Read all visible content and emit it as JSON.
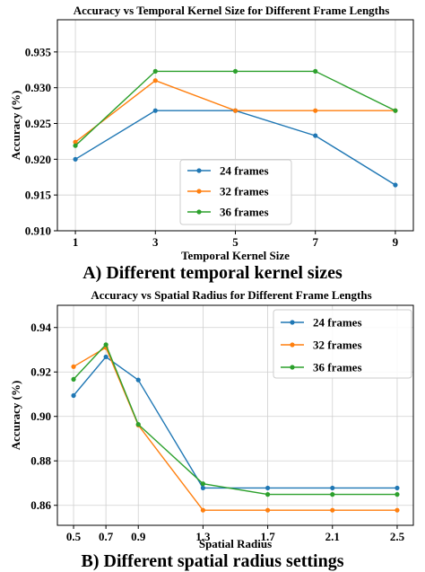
{
  "chart_data": [
    {
      "type": "line",
      "title": "Accuracy vs Temporal Kernel Size for Different Frame Lengths",
      "caption": "A) Different temporal kernel sizes",
      "xlabel": "Temporal Kernel Size",
      "ylabel": "Accuracy (%)",
      "x": [
        1,
        3,
        5,
        7,
        9
      ],
      "x_tick_labels": [
        "1",
        "3",
        "5",
        "7",
        "9"
      ],
      "xlim": [
        0.55,
        9.45
      ],
      "ylim": [
        0.91,
        0.9395
      ],
      "y_ticks": [
        0.91,
        0.915,
        0.92,
        0.925,
        0.93,
        0.935
      ],
      "y_tick_labels": [
        "0.910",
        "0.915",
        "0.920",
        "0.925",
        "0.930",
        "0.935"
      ],
      "grid": true,
      "legend_position": "lower-center",
      "series": [
        {
          "name": "24 frames",
          "color": "#1f77b4",
          "values": [
            0.92,
            0.9268,
            0.9268,
            0.9233,
            0.9164
          ]
        },
        {
          "name": "32 frames",
          "color": "#ff7f0e",
          "values": [
            0.9224,
            0.931,
            0.9268,
            0.9268,
            0.9268
          ]
        },
        {
          "name": "36 frames",
          "color": "#2ca02c",
          "values": [
            0.9219,
            0.9323,
            0.9323,
            0.9323,
            0.9268
          ]
        }
      ]
    },
    {
      "type": "line",
      "title": "Accuracy vs Spatial Radius for Different Frame Lengths",
      "caption": "B) Different spatial radius settings",
      "xlabel": "Spatial Radius",
      "ylabel": "Accuracy (%)",
      "x": [
        0.5,
        0.7,
        0.9,
        1.3,
        1.7,
        2.1,
        2.5
      ],
      "x_tick_labels": [
        "0.5",
        "0.7",
        "0.9",
        "1.3",
        "1.7",
        "2.1",
        "2.5"
      ],
      "xlim": [
        0.4,
        2.6
      ],
      "ylim": [
        0.851,
        0.95
      ],
      "y_ticks": [
        0.86,
        0.88,
        0.9,
        0.92,
        0.94
      ],
      "y_tick_labels": [
        "0.86",
        "0.88",
        "0.90",
        "0.92",
        "0.94"
      ],
      "grid": true,
      "legend_position": "upper-right",
      "series": [
        {
          "name": "24 frames",
          "color": "#1f77b4",
          "values": [
            0.9094,
            0.9268,
            0.9164,
            0.8678,
            0.8678,
            0.8678,
            0.8678
          ]
        },
        {
          "name": "32 frames",
          "color": "#ff7f0e",
          "values": [
            0.9224,
            0.931,
            0.8961,
            0.8578,
            0.8578,
            0.8578,
            0.8578
          ]
        },
        {
          "name": "36 frames",
          "color": "#2ca02c",
          "values": [
            0.9167,
            0.9323,
            0.8964,
            0.8697,
            0.8649,
            0.8649,
            0.8649
          ]
        }
      ]
    }
  ]
}
